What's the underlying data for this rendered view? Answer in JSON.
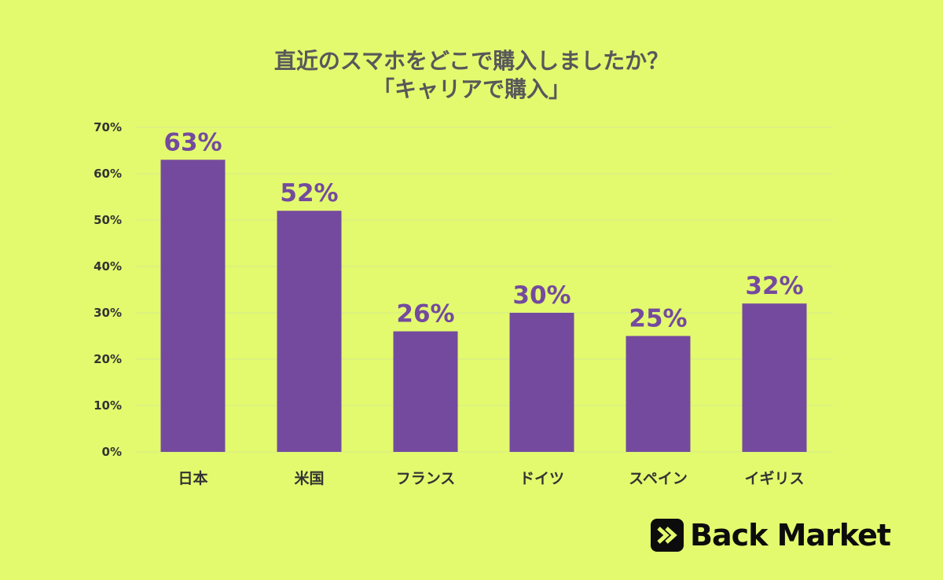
{
  "chart_data": {
    "type": "bar",
    "title": [
      "直近のスマホをどこで購入しましたか？",
      "「キャリアで購入」"
    ],
    "categories": [
      "日本",
      "米国",
      "フランス",
      "ドイツ",
      "スペイン",
      "イギリス"
    ],
    "values": [
      63,
      52,
      26,
      30,
      25,
      32
    ],
    "value_labels": [
      "63%",
      "52%",
      "26%",
      "30%",
      "25%",
      "32%"
    ],
    "y_ticks": [
      "0%",
      "10%",
      "20%",
      "30%",
      "40%",
      "50%",
      "60%",
      "70%"
    ],
    "ylim": [
      0,
      70
    ],
    "y_unit": "%",
    "grid": true,
    "legend": "none",
    "bar_color": "#744a9e",
    "grid_color": "#d6ea8e"
  },
  "background_color": "#e3fa6e",
  "logo": {
    "icon": "back-market-logo-icon",
    "text": "Back Market",
    "color": "#0c0c0c"
  }
}
